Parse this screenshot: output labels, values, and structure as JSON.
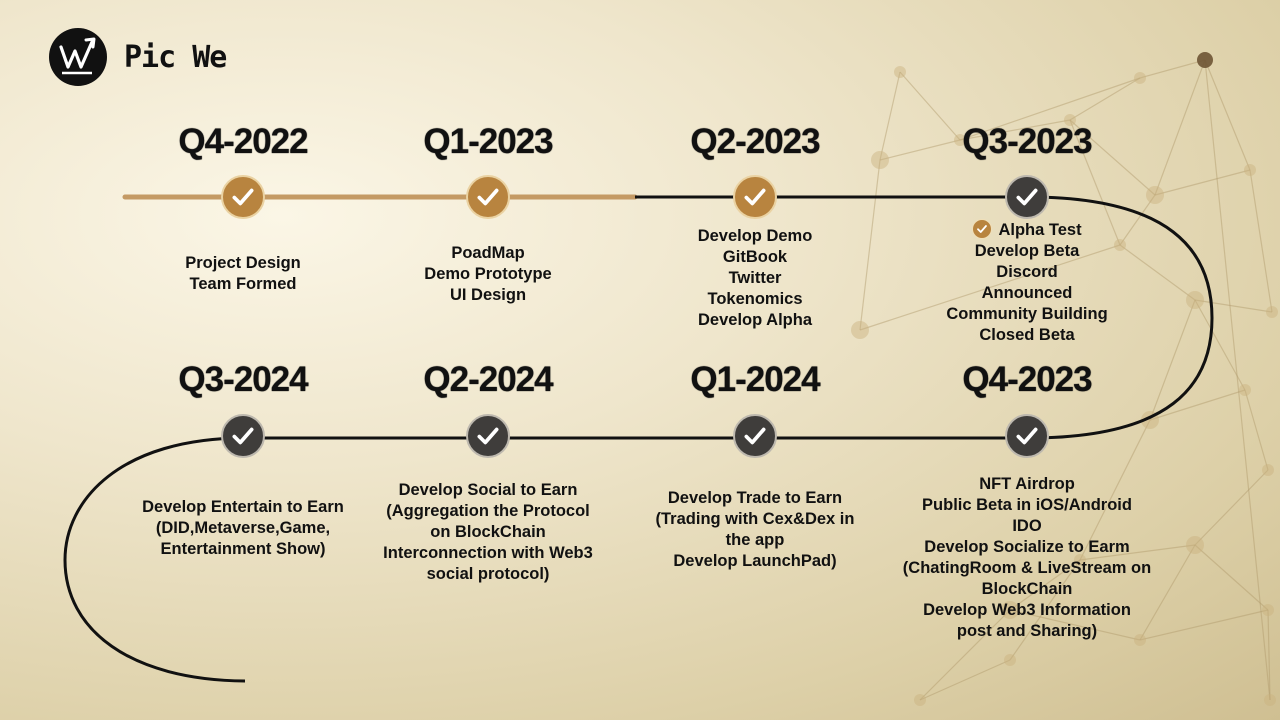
{
  "brand": {
    "name": "Pic We",
    "logo_icon": "picwe-logo-icon"
  },
  "colors": {
    "done": "#b8843f",
    "pending": "#3f3d3b",
    "track_done": "#c49a64",
    "track": "#111111"
  },
  "roadmap": {
    "quarters": [
      {
        "label": "Q4-2022",
        "status": "done",
        "items": [
          {
            "text": "Project Design"
          },
          {
            "text": "Team Formed"
          }
        ]
      },
      {
        "label": "Q1-2023",
        "status": "done",
        "items": [
          {
            "text": "PoadMap"
          },
          {
            "text": "Demo Prototype"
          },
          {
            "text": "UI Design"
          }
        ]
      },
      {
        "label": "Q2-2023",
        "status": "done",
        "items": [
          {
            "text": "Develop Demo"
          },
          {
            "text": "GitBook"
          },
          {
            "text": "Twitter"
          },
          {
            "text": "Tokenomics"
          },
          {
            "text": "Develop Alpha"
          }
        ]
      },
      {
        "label": "Q3-2023",
        "status": "pending",
        "items": [
          {
            "text": "Alpha Test",
            "checked": true
          },
          {
            "text": "Develop Beta"
          },
          {
            "text": "Discord"
          },
          {
            "text": "Announced"
          },
          {
            "text": "Community Building"
          },
          {
            "text": "Closed Beta"
          }
        ]
      },
      {
        "label": "Q4-2023",
        "status": "pending",
        "items": [
          {
            "text": "NFT Airdrop"
          },
          {
            "text": "Public Beta in iOS/Android"
          },
          {
            "text": "IDO"
          },
          {
            "text": "Develop Socialize to Earm"
          },
          {
            "text": "(ChatingRoom & LiveStream on"
          },
          {
            "text": "BlockChain"
          },
          {
            "text": "Develop Web3 Information"
          },
          {
            "text": "post and Sharing)"
          }
        ]
      },
      {
        "label": "Q1-2024",
        "status": "pending",
        "items": [
          {
            "text": "Develop Trade to Earn"
          },
          {
            "text": "(Trading with Cex&Dex in"
          },
          {
            "text": "the app"
          },
          {
            "text": "Develop LaunchPad)"
          }
        ]
      },
      {
        "label": "Q2-2024",
        "status": "pending",
        "items": [
          {
            "text": "Develop Social to Earn"
          },
          {
            "text": "(Aggregation the Protocol"
          },
          {
            "text": "on BlockChain"
          },
          {
            "text": "Interconnection with Web3"
          },
          {
            "text": "social protocol)"
          }
        ]
      },
      {
        "label": "Q3-2024",
        "status": "pending",
        "items": [
          {
            "text": "Develop Entertain to Earn"
          },
          {
            "text": "(DID,Metaverse,Game,"
          },
          {
            "text": "Entertainment Show)"
          }
        ]
      }
    ]
  }
}
